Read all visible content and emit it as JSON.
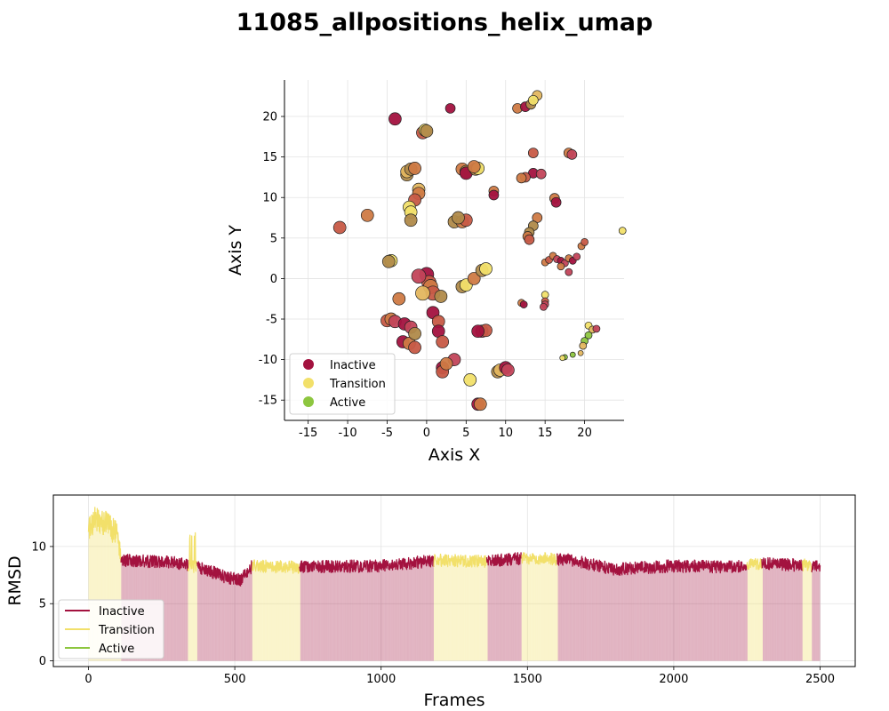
{
  "figure": {
    "title": "11085_allpositions_helix_umap"
  },
  "colors": {
    "inactive": "#a3123f",
    "transition": "#f2e06a",
    "active": "#8dc63f"
  },
  "chart_data": [
    {
      "type": "scatter",
      "xlabel": "Axis X",
      "ylabel": "Axis Y",
      "xlim": [
        -18,
        25
      ],
      "ylim": [
        -17.5,
        24.5
      ],
      "xticks": [
        -15,
        -10,
        -5,
        0,
        5,
        10,
        15,
        20
      ],
      "yticks": [
        -15,
        -10,
        -5,
        0,
        5,
        10,
        15,
        20
      ],
      "grid": true,
      "legend_position": "lower-left",
      "legend": [
        "Inactive",
        "Transition",
        "Active"
      ],
      "point_colors": [
        "#a3123f",
        "#c2455a",
        "#c75a46",
        "#cf7a45",
        "#b08a4a",
        "#e3b65f",
        "#f2e06a",
        "#8dc63f"
      ],
      "points": [
        [
          -4,
          19.7,
          4,
          0
        ],
        [
          3,
          21,
          3,
          0
        ],
        [
          11.5,
          21,
          3,
          3
        ],
        [
          12.5,
          21.2,
          3,
          0
        ],
        [
          13.2,
          21.5,
          3,
          4
        ],
        [
          14,
          22.6,
          3,
          5
        ],
        [
          13.5,
          22,
          3,
          6
        ],
        [
          -0.5,
          18,
          4,
          2
        ],
        [
          -0.2,
          18.3,
          4,
          6
        ],
        [
          0,
          18.2,
          4,
          4
        ],
        [
          -2.5,
          12.8,
          4,
          4
        ],
        [
          -2.5,
          13.2,
          4,
          5
        ],
        [
          -2,
          13.5,
          4,
          4
        ],
        [
          -1.5,
          13.6,
          4,
          3
        ],
        [
          -1,
          11,
          4,
          5
        ],
        [
          -1,
          10.5,
          4,
          3
        ],
        [
          -1.5,
          9.7,
          4,
          2
        ],
        [
          -2.2,
          8.8,
          4,
          6
        ],
        [
          -2,
          8.2,
          4,
          6
        ],
        [
          -2,
          7.2,
          4,
          4
        ],
        [
          -7.5,
          7.8,
          4,
          3
        ],
        [
          -11,
          6.3,
          4,
          2
        ],
        [
          4.5,
          13.5,
          4,
          3
        ],
        [
          5,
          13.2,
          4,
          4
        ],
        [
          5,
          13,
          4,
          0
        ],
        [
          6.2,
          13.5,
          4,
          4
        ],
        [
          6.5,
          13.6,
          4,
          6
        ],
        [
          6,
          13.8,
          4,
          3
        ],
        [
          3.5,
          7,
          4,
          4
        ],
        [
          4.5,
          7,
          4,
          3
        ],
        [
          5,
          7.2,
          4,
          2
        ],
        [
          4,
          7.5,
          4,
          4
        ],
        [
          8.5,
          10.8,
          3,
          3
        ],
        [
          8.5,
          10.3,
          3,
          0
        ],
        [
          13.5,
          15.5,
          3,
          2
        ],
        [
          13.5,
          13,
          3,
          0
        ],
        [
          14.5,
          12.9,
          3,
          1
        ],
        [
          12.5,
          12.5,
          3,
          2
        ],
        [
          12,
          12.4,
          3,
          3
        ],
        [
          16.2,
          9.9,
          3,
          3
        ],
        [
          16.4,
          9.4,
          3,
          0
        ],
        [
          14,
          7.5,
          3,
          3
        ],
        [
          13.5,
          6.5,
          3,
          4
        ],
        [
          13,
          5.7,
          3,
          4
        ],
        [
          12.8,
          5.2,
          3,
          3
        ],
        [
          13,
          4.8,
          3,
          2
        ],
        [
          18,
          15.5,
          3,
          3
        ],
        [
          18.4,
          15.3,
          3,
          1
        ],
        [
          15,
          2,
          2,
          3
        ],
        [
          15.5,
          2.3,
          2,
          2
        ],
        [
          16,
          2.8,
          2,
          3
        ],
        [
          16.5,
          2.4,
          2,
          1
        ],
        [
          17,
          2.2,
          2,
          0
        ],
        [
          17.5,
          1.9,
          2,
          1
        ],
        [
          18,
          2.5,
          2,
          3
        ],
        [
          18.5,
          2.2,
          2,
          0
        ],
        [
          19,
          2.7,
          2,
          1
        ],
        [
          18,
          0.8,
          2,
          1
        ],
        [
          17,
          1.5,
          2,
          3
        ],
        [
          19.6,
          4,
          2,
          3
        ],
        [
          20,
          4.5,
          2,
          2
        ],
        [
          24.8,
          5.9,
          2,
          6
        ],
        [
          -4.5,
          2.2,
          4,
          6
        ],
        [
          -4.8,
          2.1,
          4,
          4
        ],
        [
          0,
          0.5,
          5,
          0
        ],
        [
          0.3,
          -0.5,
          5,
          2
        ],
        [
          -1,
          0.3,
          5,
          1
        ],
        [
          0.5,
          -1,
          5,
          3
        ],
        [
          0.8,
          -1.8,
          5,
          2
        ],
        [
          -0.5,
          -1.8,
          5,
          5
        ],
        [
          -3.5,
          -2.5,
          4,
          3
        ],
        [
          1.8,
          -2.2,
          4,
          4
        ],
        [
          0.8,
          -4.2,
          4,
          0
        ],
        [
          1.5,
          -5.3,
          4,
          2
        ],
        [
          1.5,
          -6.5,
          4,
          0
        ],
        [
          2,
          -7.8,
          4,
          2
        ],
        [
          -5,
          -5.2,
          4,
          2
        ],
        [
          -4.5,
          -5,
          4,
          3
        ],
        [
          -4,
          -5.3,
          4,
          1
        ],
        [
          -2.8,
          -5.6,
          4,
          0
        ],
        [
          -2,
          -6,
          4,
          1
        ],
        [
          -3,
          -7.8,
          4,
          0
        ],
        [
          -2.2,
          -8,
          4,
          3
        ],
        [
          -1.5,
          -8.5,
          4,
          2
        ],
        [
          -1.5,
          -6.8,
          4,
          4
        ],
        [
          2,
          -11,
          4,
          0
        ],
        [
          2,
          -11.5,
          4,
          2
        ],
        [
          3.5,
          -10,
          4,
          1
        ],
        [
          2.5,
          -10.5,
          4,
          3
        ],
        [
          4.5,
          -1,
          4,
          4
        ],
        [
          5,
          -0.8,
          4,
          6
        ],
        [
          6,
          0,
          4,
          3
        ],
        [
          7,
          1,
          4,
          4
        ],
        [
          7.5,
          1.2,
          4,
          6
        ],
        [
          7,
          -6.5,
          4,
          1
        ],
        [
          7.5,
          -6.4,
          4,
          2
        ],
        [
          6.5,
          -6.5,
          4,
          0
        ],
        [
          9,
          -11.5,
          4,
          4
        ],
        [
          9.3,
          -11.3,
          4,
          5
        ],
        [
          10,
          -11,
          4,
          0
        ],
        [
          10.3,
          -11.3,
          4,
          1
        ],
        [
          5.5,
          -12.5,
          4,
          6
        ],
        [
          6.5,
          -15.5,
          4,
          0
        ],
        [
          6.8,
          -15.5,
          4,
          3
        ],
        [
          12,
          -3,
          2,
          3
        ],
        [
          12.3,
          -3.2,
          2,
          0
        ],
        [
          15,
          -2,
          2,
          6
        ],
        [
          15,
          -2.8,
          2,
          2
        ],
        [
          15,
          -3.2,
          2,
          1
        ],
        [
          14.8,
          -3.5,
          2,
          1
        ],
        [
          20.5,
          -5.8,
          2,
          6
        ],
        [
          21,
          -6.3,
          2,
          5
        ],
        [
          20.5,
          -7,
          2,
          7
        ],
        [
          20,
          -7.7,
          2,
          7
        ],
        [
          19.8,
          -8.3,
          2,
          5
        ],
        [
          21.5,
          -6.2,
          2,
          1
        ],
        [
          19.5,
          -9.2,
          1,
          5
        ],
        [
          18.5,
          -9.4,
          1,
          7
        ],
        [
          17.5,
          -9.7,
          1,
          7
        ],
        [
          17.2,
          -9.8,
          1,
          6
        ]
      ]
    },
    {
      "type": "line",
      "xlabel": "Frames",
      "ylabel": "RMSD",
      "xlim": [
        -120,
        2620
      ],
      "ylim": [
        -0.5,
        14.5
      ],
      "xticks": [
        0,
        500,
        1000,
        1500,
        2000,
        2500
      ],
      "yticks": [
        0,
        5,
        10
      ],
      "grid": true,
      "legend_position": "lower-left",
      "series": [
        {
          "name": "Inactive",
          "color": "#a3123f"
        },
        {
          "name": "Transition",
          "color": "#f2e06a"
        },
        {
          "name": "Active",
          "color": "#8dc63f"
        }
      ],
      "frames": 2500,
      "rmsd_keypoints": [
        [
          0,
          11.2
        ],
        [
          20,
          12.5
        ],
        [
          60,
          12.0
        ],
        [
          100,
          11.0
        ],
        [
          110,
          8.8
        ],
        [
          300,
          8.6
        ],
        [
          400,
          8.0
        ],
        [
          470,
          7.3
        ],
        [
          520,
          7.1
        ],
        [
          560,
          8.3
        ],
        [
          700,
          8.2
        ],
        [
          1000,
          8.3
        ],
        [
          1200,
          8.8
        ],
        [
          1350,
          8.7
        ],
        [
          1500,
          9.0
        ],
        [
          1650,
          8.8
        ],
        [
          1800,
          8.0
        ],
        [
          2000,
          8.3
        ],
        [
          2200,
          8.2
        ],
        [
          2300,
          8.5
        ],
        [
          2500,
          8.3
        ]
      ],
      "transition_frames": [
        [
          0,
          110
        ],
        [
          340,
          370
        ],
        [
          560,
          720
        ],
        [
          1180,
          1360
        ],
        [
          1480,
          1600
        ],
        [
          2250,
          2300
        ],
        [
          2440,
          2470
        ]
      ]
    }
  ]
}
